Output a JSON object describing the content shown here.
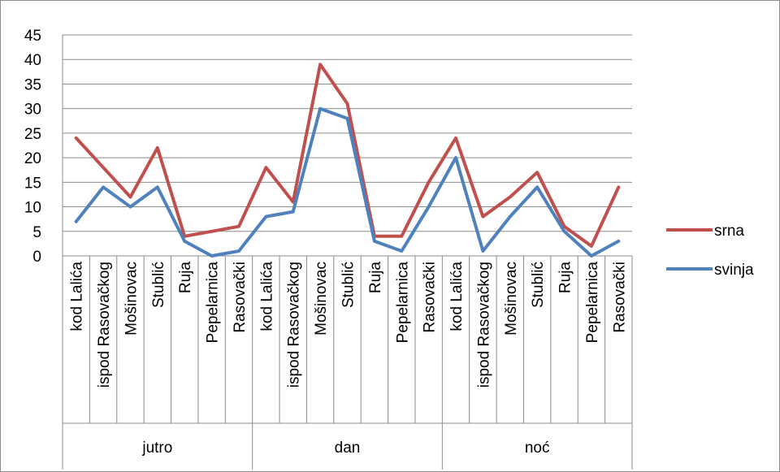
{
  "chart_data": {
    "type": "line",
    "title": "",
    "xlabel": "",
    "ylabel": "",
    "ylim": [
      0,
      45
    ],
    "yticks": [
      0,
      5,
      10,
      15,
      20,
      25,
      30,
      35,
      40,
      45
    ],
    "grid": "horizontal",
    "legend": "right",
    "groups": [
      {
        "name": "jutro",
        "categories": [
          "kod Lalića",
          "ispod Rasovačkog",
          "Mošinovac",
          "Stublić",
          "Ruja",
          "Pepelarnica",
          "Rasovački"
        ]
      },
      {
        "name": "dan",
        "categories": [
          "kod Lalića",
          "ispod Rasovačkog",
          "Mošinovac",
          "Stublić",
          "Ruja",
          "Pepelarnica",
          "Rasovački"
        ]
      },
      {
        "name": "noć",
        "categories": [
          "kod Lalića",
          "ispod Rasovačkog",
          "Mošinovac",
          "Stublić",
          "Ruja",
          "Pepelarnica",
          "Rasovački"
        ]
      }
    ],
    "series": [
      {
        "name": "srna",
        "color": "#c0504d",
        "values": [
          24,
          18,
          12,
          22,
          4,
          5,
          6,
          18,
          11,
          39,
          31,
          4,
          4,
          15,
          24,
          8,
          12,
          17,
          6,
          2,
          14
        ]
      },
      {
        "name": "svinja",
        "color": "#4f81bd",
        "values": [
          7,
          14,
          10,
          14,
          3,
          0,
          1,
          8,
          9,
          30,
          28,
          3,
          1,
          10,
          20,
          1,
          8,
          14,
          5,
          0,
          3
        ]
      }
    ]
  }
}
